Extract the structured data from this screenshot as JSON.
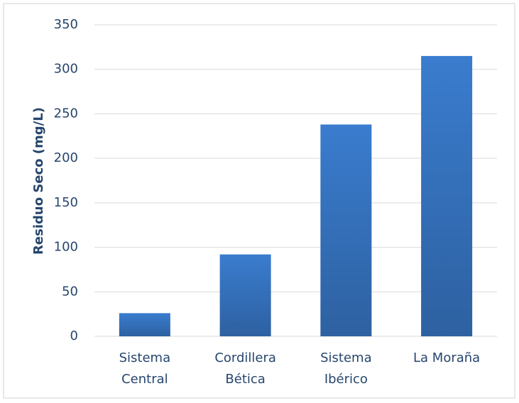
{
  "chart_data": {
    "type": "bar",
    "y_label": "Residuo Seco (mg/L)",
    "categories": [
      "Sistema Central",
      "Cordillera Bética",
      "Sistema Ibérico",
      "La Moraña"
    ],
    "values": [
      26,
      92,
      238,
      315
    ],
    "color": "#3a7cce",
    "ylim": [
      0,
      350
    ],
    "yticks": [
      0,
      50,
      100,
      150,
      200,
      250,
      300,
      350
    ],
    "grid": true
  }
}
